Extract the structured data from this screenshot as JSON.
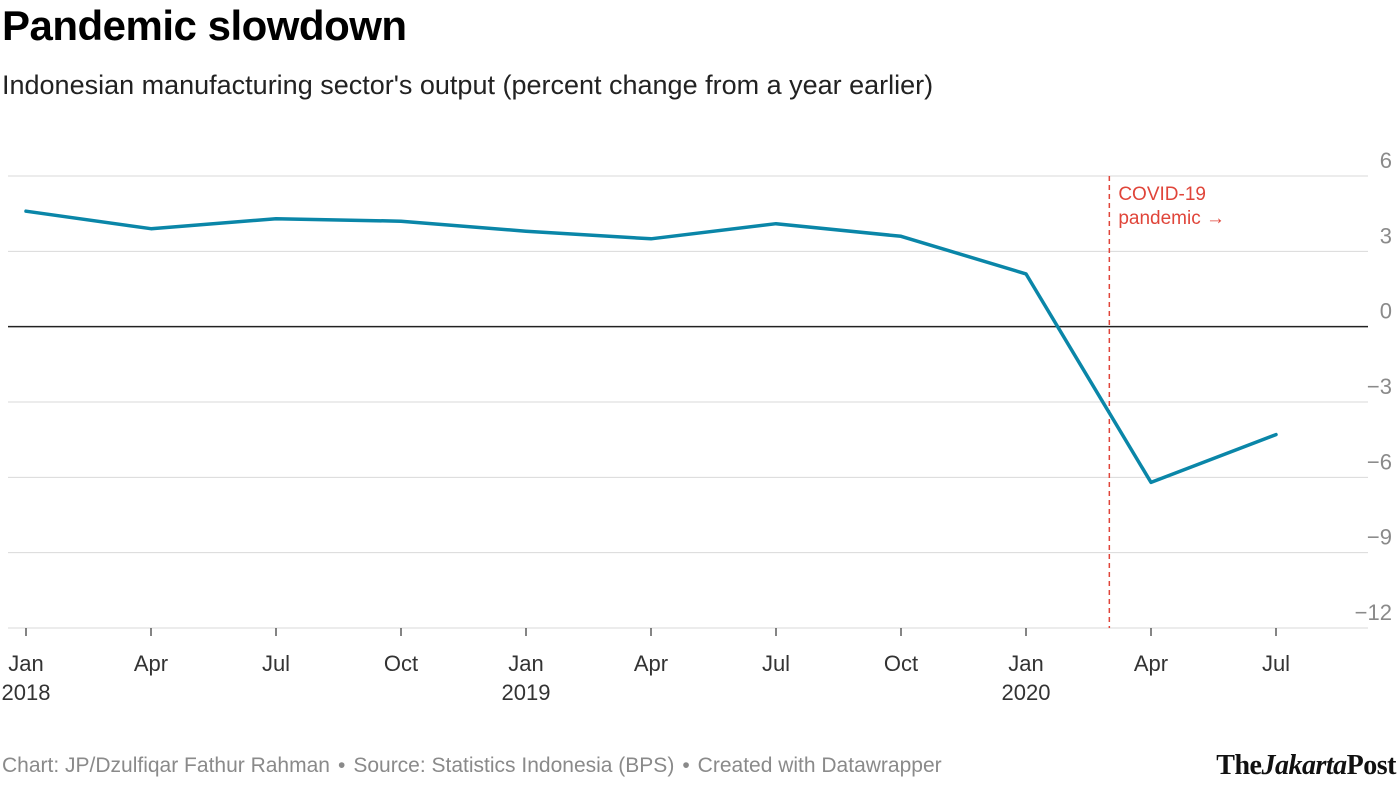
{
  "title": "Pandemic slowdown",
  "subtitle": "Indonesian manufacturing sector's output (percent change from a year earlier)",
  "footer": {
    "credit": "Chart: JP/Dzulfiqar Fathur Rahman",
    "source": "Source: Statistics Indonesia (BPS)",
    "tool": "Created with Datawrapper",
    "separator": "•"
  },
  "logo": {
    "part1": "The",
    "part2": "Jakarta",
    "part3": "Post"
  },
  "chart_data": {
    "type": "line",
    "title": "Pandemic slowdown",
    "subtitle": "Indonesian manufacturing sector's output (percent change from a year earlier)",
    "xlabel": "",
    "ylabel": "",
    "ylim": [
      -12,
      6
    ],
    "y_ticks": [
      6,
      3,
      0,
      -3,
      -6,
      -9,
      -12
    ],
    "y_tick_labels": [
      "6",
      "3",
      "0",
      "−3",
      "−6",
      "−9",
      "−12"
    ],
    "x_ticks": [
      {
        "month": "2018-01",
        "label": "Jan",
        "year": "2018"
      },
      {
        "month": "2018-04",
        "label": "Apr",
        "year": ""
      },
      {
        "month": "2018-07",
        "label": "Jul",
        "year": ""
      },
      {
        "month": "2018-10",
        "label": "Oct",
        "year": ""
      },
      {
        "month": "2019-01",
        "label": "Jan",
        "year": "2019"
      },
      {
        "month": "2019-04",
        "label": "Apr",
        "year": ""
      },
      {
        "month": "2019-07",
        "label": "Jul",
        "year": ""
      },
      {
        "month": "2019-10",
        "label": "Oct",
        "year": ""
      },
      {
        "month": "2020-01",
        "label": "Jan",
        "year": "2020"
      },
      {
        "month": "2020-04",
        "label": "Apr",
        "year": ""
      },
      {
        "month": "2020-07",
        "label": "Jul",
        "year": ""
      }
    ],
    "x_range": [
      "2017-12",
      "2020-09"
    ],
    "grid": true,
    "series": [
      {
        "color": "#0a86a8",
        "points": [
          {
            "x": "2018-01",
            "y": 4.6
          },
          {
            "x": "2018-04",
            "y": 3.9
          },
          {
            "x": "2018-07",
            "y": 4.3
          },
          {
            "x": "2018-10",
            "y": 4.2
          },
          {
            "x": "2019-01",
            "y": 3.8
          },
          {
            "x": "2019-04",
            "y": 3.5
          },
          {
            "x": "2019-07",
            "y": 4.1
          },
          {
            "x": "2019-10",
            "y": 3.6
          },
          {
            "x": "2020-01",
            "y": 2.1
          },
          {
            "x": "2020-04",
            "y": -6.2
          },
          {
            "x": "2020-07",
            "y": -4.3
          }
        ]
      }
    ],
    "annotations": [
      {
        "x": "2020-03",
        "line1": "COVID-19",
        "line2": "pandemic →",
        "color": "#e0453a"
      }
    ]
  }
}
